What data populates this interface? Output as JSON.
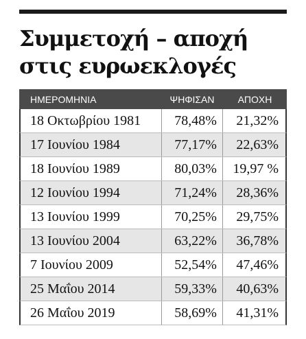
{
  "header": {
    "title": [
      "Συμμετοχή – αποχή",
      "στις ευρωεκλογές"
    ]
  },
  "table": {
    "columns": [
      "ΗΜΕΡΟΜΗΝΙΑ",
      "ΨΗΦΙΣΑΝ",
      "ΑΠΟΧΗ"
    ],
    "rows": [
      [
        "18 Οκτωβρίου 1981",
        "78,48%",
        "21,32%"
      ],
      [
        "17 Ιουνίου 1984",
        "77,17%",
        "22,63%"
      ],
      [
        "18 Ιουνίου 1989",
        "80,03%",
        "19,97 %"
      ],
      [
        "12 Ιουνίου 1994",
        "71,24%",
        "28,36%"
      ],
      [
        "13 Ιουνίου 1999",
        "70,25%",
        "29,75%"
      ],
      [
        "13 Ιουνίου 2004",
        "63,22%",
        "36,78%"
      ],
      [
        "7 Ιουνίου 2009",
        "52,54%",
        "47,46%"
      ],
      [
        "25 Μαΐου 2014",
        "59,33%",
        "40,63%"
      ],
      [
        "26 Μαΐου 2019",
        "58,69%",
        "41,31%"
      ]
    ]
  }
}
